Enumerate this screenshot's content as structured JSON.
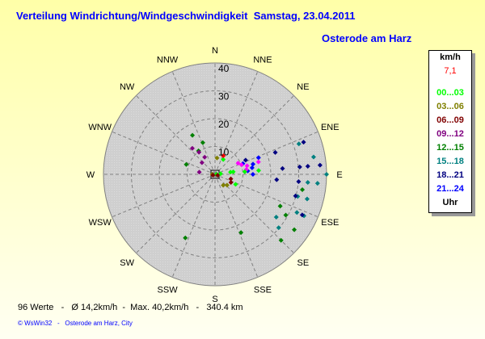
{
  "title": "Verteilung Windrichtung/Windgeschwindigkeit  Samstag, 23.04.2011",
  "subtitle": "Osterode am Harz",
  "stats": "96 Werte   -   Ø 14,2km/h  -  Max. 40,2km/h   -   340.4 km",
  "credit": "© WsWin32   -   Osterode am Harz, City",
  "legend": {
    "unit": "km/h",
    "current": "7,1",
    "current_color": "#ff0000",
    "footer": "Uhr",
    "classes": [
      {
        "label": "00...03",
        "color": "#00ff00"
      },
      {
        "label": "03...06",
        "color": "#808000"
      },
      {
        "label": "06...09",
        "color": "#800000"
      },
      {
        "label": "09...12",
        "color": "#800080"
      },
      {
        "label": "12...15",
        "color": "#008000"
      },
      {
        "label": "15...18",
        "color": "#008080"
      },
      {
        "label": "18...21",
        "color": "#000080"
      },
      {
        "label": "21...24",
        "color": "#0000ff"
      }
    ]
  },
  "chart_data": {
    "type": "scatter",
    "coordinate_system": "polar",
    "radial_range": [
      0,
      40
    ],
    "radial_ticks": [
      "10",
      "20",
      "30",
      "40"
    ],
    "directions": [
      "N",
      "NNE",
      "NE",
      "ENE",
      "E",
      "ESE",
      "SE",
      "SSE",
      "S",
      "SSW",
      "SW",
      "WSW",
      "W",
      "WNW",
      "NW",
      "NNW"
    ],
    "grid": true,
    "legend_placement": "right",
    "points": [
      {
        "dir": 330,
        "speed": 16.2,
        "color": "#008000"
      },
      {
        "dir": 339,
        "speed": 12.2,
        "color": "#008000"
      },
      {
        "dir": 325,
        "speed": 10.3,
        "color": "#008000"
      },
      {
        "dir": 289,
        "speed": 10.9,
        "color": "#008000"
      },
      {
        "dir": 116,
        "speed": 26.0,
        "color": "#008000"
      },
      {
        "dir": 120,
        "speed": 29.3,
        "color": "#008000"
      },
      {
        "dir": 100,
        "speed": 31.8,
        "color": "#008000"
      },
      {
        "dir": 125,
        "speed": 34.7,
        "color": "#008000"
      },
      {
        "dir": 156,
        "speed": 22.9,
        "color": "#008000"
      },
      {
        "dir": 205,
        "speed": 25.2,
        "color": "#008000"
      },
      {
        "dir": 135,
        "speed": 33.5,
        "color": "#008000"
      },
      {
        "dir": 70,
        "speed": 32.0,
        "color": "#008080"
      },
      {
        "dir": 80,
        "speed": 35.9,
        "color": "#008080"
      },
      {
        "dir": 90,
        "speed": 40.0,
        "color": "#008080"
      },
      {
        "dir": 95,
        "speed": 33.4,
        "color": "#008080"
      },
      {
        "dir": 95,
        "speed": 36.9,
        "color": "#008080"
      },
      {
        "dir": 105,
        "speed": 34.2,
        "color": "#008080"
      },
      {
        "dir": 105,
        "speed": 30.7,
        "color": "#008080"
      },
      {
        "dir": 115,
        "speed": 32.4,
        "color": "#008080"
      },
      {
        "dir": 115,
        "speed": 35.2,
        "color": "#008080"
      },
      {
        "dir": 125,
        "speed": 26.8,
        "color": "#008080"
      },
      {
        "dir": 130,
        "speed": 29.8,
        "color": "#008080"
      },
      {
        "dir": 70,
        "speed": 33.8,
        "color": "#000080"
      },
      {
        "dir": 70,
        "speed": 23.0,
        "color": "#000080"
      },
      {
        "dir": 85,
        "speed": 24.3,
        "color": "#000080"
      },
      {
        "dir": 85,
        "speed": 30.5,
        "color": "#000080"
      },
      {
        "dir": 85,
        "speed": 33.4,
        "color": "#000080"
      },
      {
        "dir": 85,
        "speed": 37.8,
        "color": "#000080"
      },
      {
        "dir": 95,
        "speed": 22.2,
        "color": "#000080"
      },
      {
        "dir": 95,
        "speed": 30.1,
        "color": "#000080"
      },
      {
        "dir": 105,
        "speed": 29.9,
        "color": "#000080"
      },
      {
        "dir": 115,
        "speed": 34.5,
        "color": "#000080"
      },
      {
        "dir": 65,
        "speed": 12.1,
        "color": "#000080"
      },
      {
        "dir": 69,
        "speed": 16.7,
        "color": "#0000ff"
      },
      {
        "dir": 75,
        "speed": 14.1,
        "color": "#0000ff"
      },
      {
        "dir": 80,
        "speed": 13.5,
        "color": "#0000ff"
      },
      {
        "dir": 84,
        "speed": 11.8,
        "color": "#0000ff"
      },
      {
        "dir": 90,
        "speed": 13.6,
        "color": "#0000ff"
      },
      {
        "dir": 69,
        "speed": 10.7,
        "color": "#0000ff"
      },
      {
        "dir": 64,
        "speed": 9.2,
        "color": "#ff00ff"
      },
      {
        "dir": 70,
        "speed": 10.1,
        "color": "#ff00ff"
      },
      {
        "dir": 75,
        "speed": 11.9,
        "color": "#ff00ff"
      },
      {
        "dir": 81,
        "speed": 11.4,
        "color": "#ff00ff"
      },
      {
        "dir": 74,
        "speed": 16.2,
        "color": "#ff00ff"
      },
      {
        "dir": 319,
        "speed": 12.4,
        "color": "#800080"
      },
      {
        "dir": 324,
        "speed": 9.8,
        "color": "#800080"
      },
      {
        "dir": 329,
        "speed": 7.2,
        "color": "#800080"
      },
      {
        "dir": 312,
        "speed": 6.3,
        "color": "#800080"
      },
      {
        "dir": 278,
        "speed": 5.7,
        "color": "#800080"
      },
      {
        "dir": 29,
        "speed": 6.1,
        "color": "#00ff00"
      },
      {
        "dir": 90,
        "speed": 0.5,
        "color": "#00ff00"
      },
      {
        "dir": 84,
        "speed": 2.0,
        "color": "#00ff00"
      },
      {
        "dir": 82,
        "speed": 5.6,
        "color": "#00ff00"
      },
      {
        "dir": 82,
        "speed": 6.6,
        "color": "#00ff00"
      },
      {
        "dir": 116,
        "speed": 8.2,
        "color": "#00ff00"
      },
      {
        "dir": 85,
        "speed": 10.7,
        "color": "#00ff00"
      },
      {
        "dir": 85,
        "speed": 15.7,
        "color": "#00ff00"
      },
      {
        "dir": 7,
        "speed": 5.9,
        "color": "#808000"
      },
      {
        "dir": 143,
        "speed": 4.9,
        "color": "#808000"
      },
      {
        "dir": 132,
        "speed": 5.8,
        "color": "#808000"
      },
      {
        "dir": 270,
        "speed": 1.0,
        "color": "#808000"
      },
      {
        "dir": 106,
        "speed": 5.9,
        "color": "#800000"
      },
      {
        "dir": 117,
        "speed": 6.4,
        "color": "#800000"
      },
      {
        "dir": 110,
        "speed": 1.0,
        "color": "#800000"
      },
      {
        "dir": 250,
        "speed": 0.8,
        "color": "#800000"
      },
      {
        "dir": 24,
        "speed": 7.3,
        "color": "#ff0000"
      }
    ]
  }
}
